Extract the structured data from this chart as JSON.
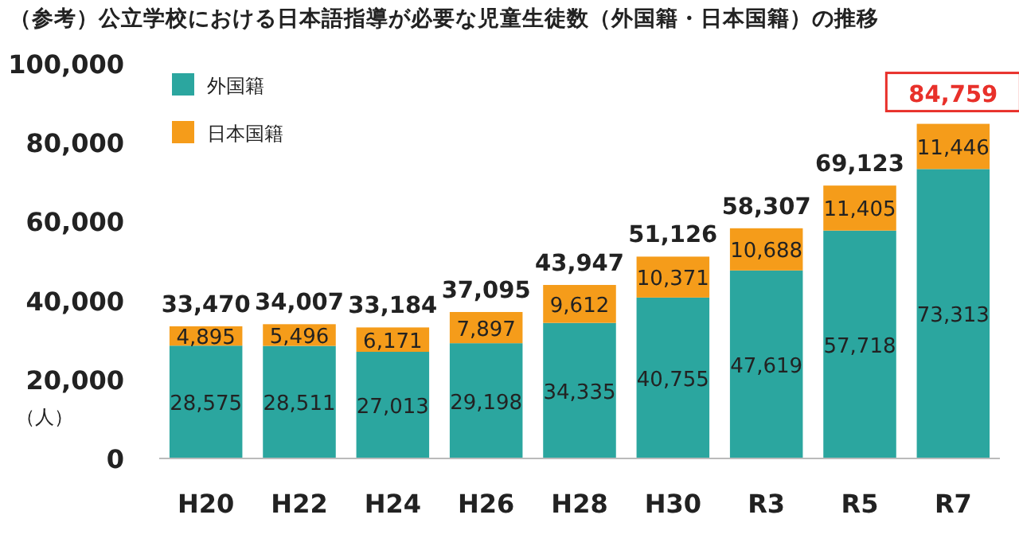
{
  "chart_data": {
    "type": "bar",
    "stacked": true,
    "title": "（参考）公立学校における日本語指導が必要な児童生徒数（外国籍・日本国籍）の推移",
    "ylabel": "（人）",
    "categories": [
      "H20",
      "H22",
      "H24",
      "H26",
      "H28",
      "H30",
      "R3",
      "R5",
      "R7"
    ],
    "series": [
      {
        "name": "外国籍",
        "color": "#2ba69f",
        "values": [
          28575,
          28511,
          27013,
          29198,
          34335,
          40755,
          47619,
          57718,
          73313
        ],
        "value_labels": [
          "28,575",
          "28,511",
          "27,013",
          "29,198",
          "34,335",
          "40,755",
          "47,619",
          "57,718",
          "73,313"
        ]
      },
      {
        "name": "日本国籍",
        "color": "#f59c1a",
        "values": [
          4895,
          5496,
          6171,
          7897,
          9612,
          10371,
          10688,
          11405,
          11446
        ],
        "value_labels": [
          "4,895",
          "5,496",
          "6,171",
          "7,897",
          "9,612",
          "10,371",
          "10,688",
          "11,405",
          "11,446"
        ]
      }
    ],
    "totals": [
      "33,470",
      "34,007",
      "33,184",
      "37,095",
      "43,947",
      "51,126",
      "58,307",
      "69,123",
      "84,759"
    ],
    "ylim": [
      0,
      100000
    ],
    "yticks": [
      {
        "value": 0,
        "label": "0"
      },
      {
        "value": 20000,
        "label": "20,000"
      },
      {
        "value": 40000,
        "label": "40,000"
      },
      {
        "value": 60000,
        "label": "60,000"
      },
      {
        "value": 80000,
        "label": "80,000"
      },
      {
        "value": 100000,
        "label": "100,000"
      }
    ],
    "legend": "top left",
    "grid": false
  }
}
